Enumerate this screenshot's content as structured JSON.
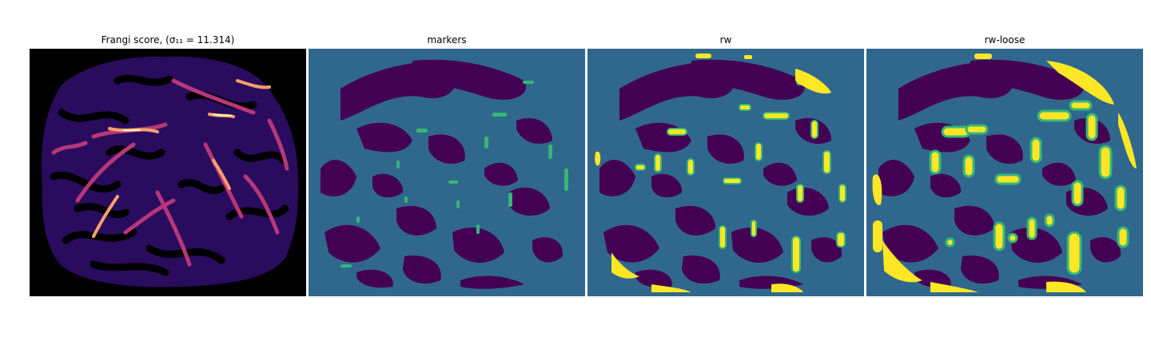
{
  "figure": {
    "panels": [
      {
        "title": "Frangi score, (σ₁₁ = 11.314)",
        "image": "frangi-score-heatmap"
      },
      {
        "title": "markers",
        "image": "marker-label-map"
      },
      {
        "title": "rw",
        "image": "random-walker-segmentation"
      },
      {
        "title": "rw-loose",
        "image": "random-walker-loose-segmentation"
      }
    ]
  },
  "colors": {
    "background_label": "#30678d",
    "tissue_label": "#440154",
    "marker_label": "#35b779",
    "vessel_label": "#fde725",
    "frangi_background": "#000000",
    "frangi_low": "#3b0f70",
    "frangi_mid": "#8c2981",
    "frangi_high": "#fe9f6d",
    "frangi_peak": "#fcfdbf"
  }
}
